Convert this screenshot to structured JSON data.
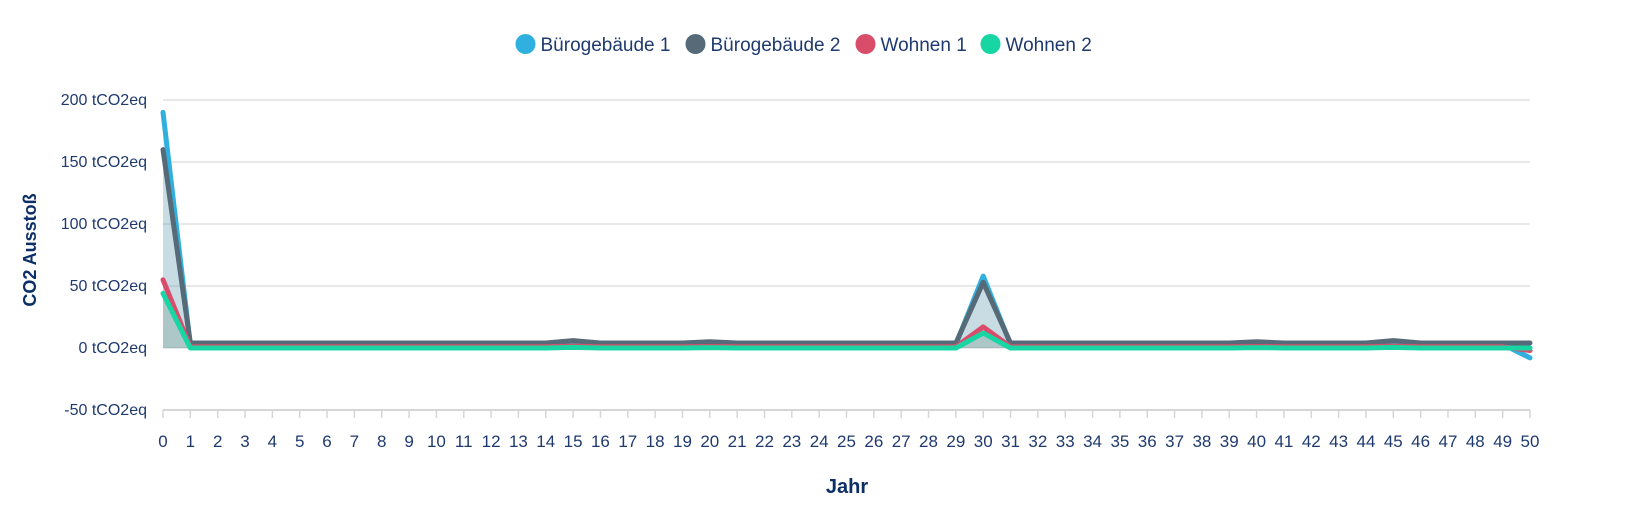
{
  "chart_data": {
    "type": "area",
    "xlabel": "Jahr",
    "ylabel": "CO2 Ausstoß",
    "y_unit": "tCO2eq",
    "ylim": [
      -50,
      200
    ],
    "y_ticks": [
      -50,
      0,
      50,
      100,
      150,
      200
    ],
    "y_tick_labels": [
      "-50 tCO2eq",
      "0 tCO2eq",
      "50 tCO2eq",
      "100 tCO2eq",
      "150 tCO2eq",
      "200 tCO2eq"
    ],
    "x": [
      0,
      1,
      2,
      3,
      4,
      5,
      6,
      7,
      8,
      9,
      10,
      11,
      12,
      13,
      14,
      15,
      16,
      17,
      18,
      19,
      20,
      21,
      22,
      23,
      24,
      25,
      26,
      27,
      28,
      29,
      30,
      31,
      32,
      33,
      34,
      35,
      36,
      37,
      38,
      39,
      40,
      41,
      42,
      43,
      44,
      45,
      46,
      47,
      48,
      49,
      50
    ],
    "grid": true,
    "legend_position": "top-center",
    "series": [
      {
        "name": "Bürogebäude 1",
        "color": "#2fb0de",
        "values": [
          190,
          3,
          3,
          3,
          3,
          3,
          3,
          3,
          3,
          3,
          3,
          3,
          3,
          3,
          3,
          4,
          3,
          3,
          3,
          3,
          3.5,
          3,
          3,
          3,
          3,
          3,
          3,
          3,
          3,
          3,
          58,
          3,
          3,
          3,
          3,
          3,
          3,
          3,
          3,
          3,
          3.5,
          3,
          3,
          3,
          3,
          4,
          3,
          3,
          3,
          3,
          -8
        ]
      },
      {
        "name": "Bürogebäude 2",
        "color": "#566a78",
        "values": [
          160,
          4,
          4,
          4,
          4,
          4,
          4,
          4,
          4,
          4,
          4,
          4,
          4,
          4,
          4,
          6,
          4,
          4,
          4,
          4,
          5,
          4,
          4,
          4,
          4,
          4,
          4,
          4,
          4,
          4,
          53,
          4,
          4,
          4,
          4,
          4,
          4,
          4,
          4,
          4,
          5,
          4,
          4,
          4,
          4,
          6,
          4,
          4,
          4,
          4,
          4
        ]
      },
      {
        "name": "Wohnen 1",
        "color": "#d94d6b",
        "values": [
          55,
          1,
          1,
          1,
          1,
          1,
          1,
          1,
          1,
          1,
          1,
          1,
          1,
          1,
          1,
          1.5,
          1,
          1,
          1,
          1,
          1.2,
          1,
          1,
          1,
          1,
          1,
          1,
          1,
          1,
          1,
          17,
          1,
          1,
          1,
          1,
          1,
          1,
          1,
          1,
          1,
          1.2,
          1,
          1,
          1,
          1,
          1.5,
          1,
          1,
          1,
          1,
          -2
        ]
      },
      {
        "name": "Wohnen 2",
        "color": "#18d6a3",
        "values": [
          44,
          0,
          0,
          0,
          0,
          0,
          0,
          0,
          0,
          0,
          0,
          0,
          0,
          0,
          0,
          0.5,
          0,
          0,
          0,
          0,
          0.3,
          0,
          0,
          0,
          0,
          0,
          0,
          0,
          0,
          0,
          12,
          0,
          0,
          0,
          0,
          0,
          0,
          0,
          0,
          0,
          0.3,
          0,
          0,
          0,
          0,
          0.5,
          0,
          0,
          0,
          0,
          0
        ]
      }
    ]
  }
}
